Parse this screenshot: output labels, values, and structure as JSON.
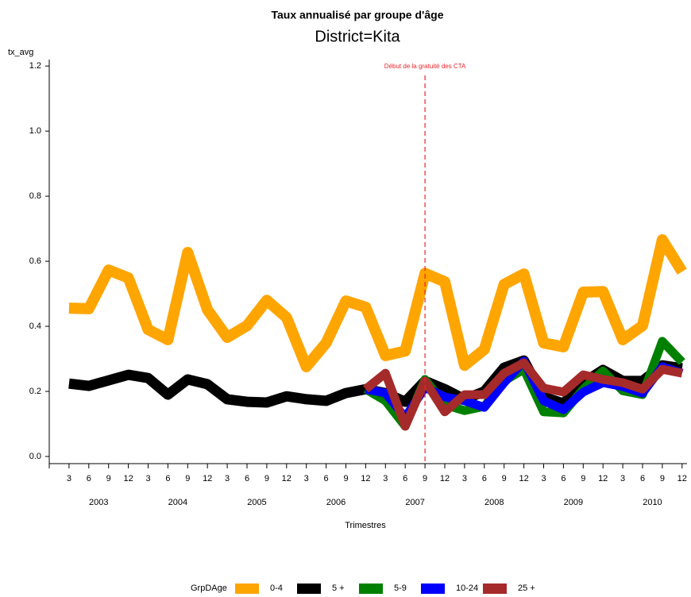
{
  "chart_data": {
    "type": "line",
    "title": "Taux annualisé par groupe d'âge",
    "subtitle": "District=Kita",
    "y_label": "tx_avg",
    "x_label": "Trimestres",
    "legend_title": "GrpDAge",
    "legend": "bottom",
    "categories": [
      null,
      "3",
      "6",
      "9",
      "12",
      "3",
      "6",
      "9",
      "12",
      "3",
      "6",
      "9",
      "12",
      "3",
      "6",
      "9",
      "12",
      "3",
      "6",
      "9",
      "12",
      "3",
      "6",
      "9",
      "12",
      "3",
      "6",
      "9",
      "12",
      "3",
      "6",
      "9",
      "12"
    ],
    "years": [
      "2003",
      "2004",
      "2005",
      "2006",
      "2007",
      "2008",
      "2009",
      "2010"
    ],
    "ylim": [
      -0.022,
      1.22
    ],
    "yticks": [
      {
        "value": 0,
        "label": "0.0"
      },
      0.2,
      0.4,
      0.6,
      0.8,
      {
        "value": 1,
        "label": "1.0"
      },
      1.2
    ],
    "annotation": {
      "text": "Début de la gratuité des CTA",
      "at": 19,
      "color": "#e8262b"
    },
    "series": [
      {
        "name": "0-4",
        "color": "#ffa500",
        "width": 14,
        "values": [
          null,
          0.456,
          0.454,
          0.573,
          0.549,
          0.39,
          0.359,
          0.627,
          0.451,
          0.366,
          0.402,
          0.48,
          0.427,
          0.276,
          0.349,
          0.478,
          0.459,
          0.31,
          0.324,
          0.563,
          0.537,
          0.28,
          0.329,
          0.529,
          0.561,
          0.349,
          0.337,
          0.505,
          0.507,
          0.359,
          0.402,
          0.666,
          0.568
        ]
      },
      {
        "name": "5 +",
        "color": "#000000",
        "width": 13,
        "values": [
          null,
          0.224,
          0.217,
          0.234,
          0.251,
          0.241,
          0.19,
          0.237,
          0.222,
          0.176,
          0.168,
          0.166,
          0.185,
          0.176,
          0.171,
          0.195,
          0.207,
          0.195,
          0.168,
          0.232,
          0.207,
          0.176,
          0.2,
          0.273,
          0.295,
          0.183,
          0.163,
          0.227,
          0.266,
          0.232,
          0.232,
          0.28,
          0.271
        ]
      },
      {
        "name": "5-9",
        "color": "#008000",
        "width": 11,
        "values": [
          null,
          null,
          null,
          null,
          null,
          null,
          null,
          null,
          null,
          null,
          null,
          null,
          null,
          null,
          null,
          null,
          0.207,
          0.171,
          0.093,
          0.237,
          0.159,
          0.141,
          0.154,
          0.232,
          0.268,
          0.137,
          0.134,
          0.207,
          0.263,
          0.202,
          0.19,
          0.354,
          0.29
        ]
      },
      {
        "name": "10-24",
        "color": "#0000ff",
        "width": 11,
        "values": [
          null,
          null,
          null,
          null,
          null,
          null,
          null,
          null,
          null,
          null,
          null,
          null,
          null,
          null,
          null,
          null,
          0.207,
          0.195,
          0.12,
          0.212,
          0.183,
          0.171,
          0.151,
          0.227,
          0.293,
          0.171,
          0.144,
          0.198,
          0.227,
          0.215,
          0.195,
          0.276,
          0.256
        ]
      },
      {
        "name": "25 +",
        "color": "#a52a2a",
        "width": 11,
        "values": [
          null,
          null,
          null,
          null,
          null,
          null,
          null,
          null,
          null,
          null,
          null,
          null,
          null,
          null,
          null,
          null,
          0.207,
          0.256,
          0.093,
          0.232,
          0.137,
          0.19,
          0.19,
          0.256,
          0.288,
          0.21,
          0.198,
          0.251,
          0.237,
          0.227,
          0.207,
          0.268,
          0.256
        ]
      }
    ]
  }
}
